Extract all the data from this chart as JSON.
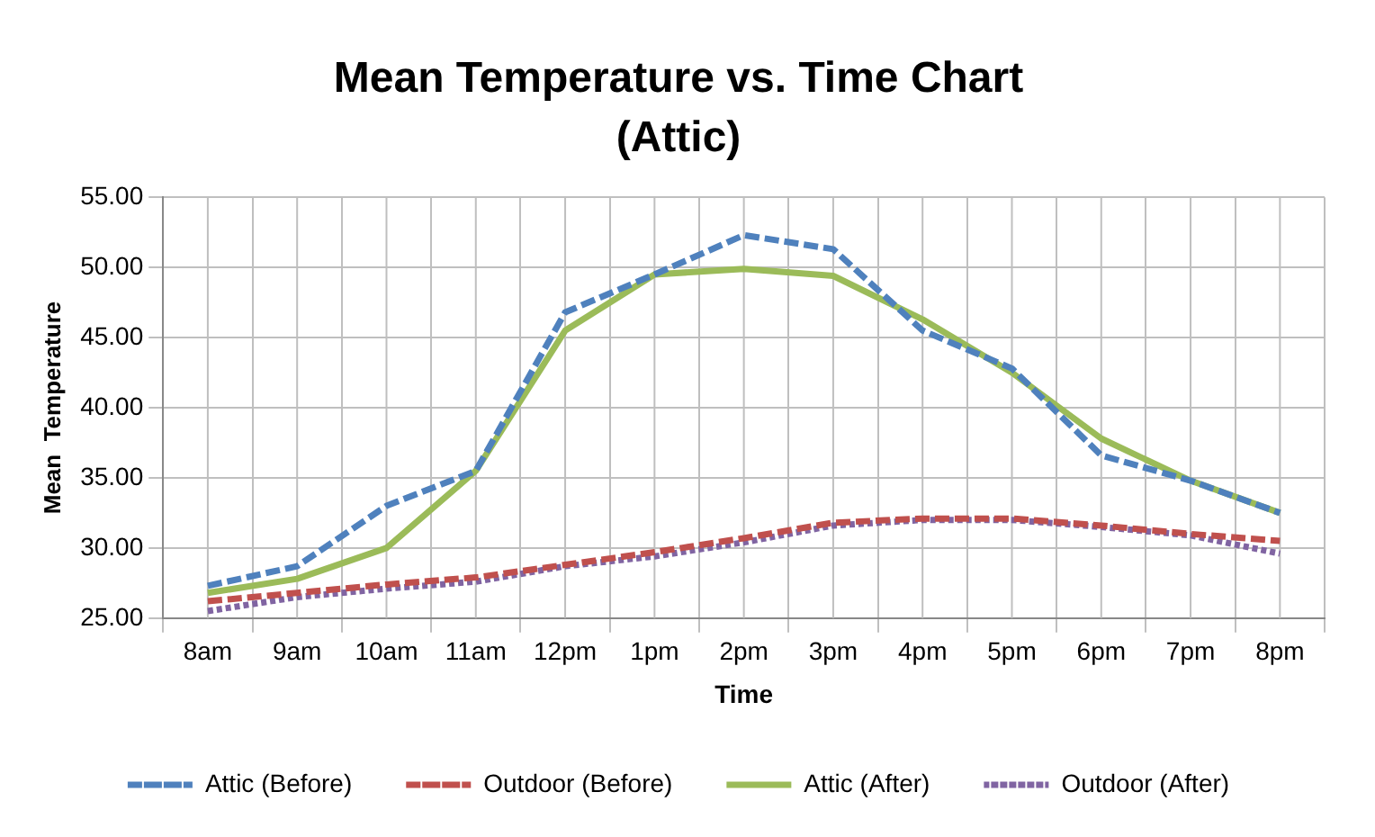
{
  "chart_data": {
    "type": "line",
    "title": "Mean Temperature vs. Time Chart",
    "subtitle": "(Attic)",
    "xlabel": "Time",
    "ylabel": "Mean  Temperature",
    "categories": [
      "8am",
      "9am",
      "10am",
      "11am",
      "12pm",
      "1pm",
      "2pm",
      "3pm",
      "4pm",
      "5pm",
      "6pm",
      "7pm",
      "8pm"
    ],
    "series": [
      {
        "name": "Attic (Before)",
        "color": "#4f81bd",
        "line_style": "dashed",
        "values": [
          27.3,
          28.7,
          33.0,
          35.5,
          46.8,
          49.5,
          52.3,
          51.3,
          45.5,
          42.8,
          36.6,
          34.8,
          32.5
        ]
      },
      {
        "name": "Outdoor (Before)",
        "color": "#c0504d",
        "line_style": "dashed",
        "values": [
          26.2,
          26.8,
          27.4,
          27.9,
          28.8,
          29.7,
          30.7,
          31.8,
          32.1,
          32.1,
          31.6,
          31.0,
          30.5
        ]
      },
      {
        "name": "Attic (After)",
        "color": "#9bbb59",
        "line_style": "solid",
        "values": [
          26.8,
          27.8,
          30.0,
          35.5,
          45.5,
          49.5,
          49.9,
          49.4,
          46.3,
          42.5,
          37.8,
          34.8,
          32.5
        ]
      },
      {
        "name": "Outdoor (After)",
        "color": "#8064a2",
        "line_style": "dotted",
        "values": [
          25.5,
          26.5,
          27.1,
          27.6,
          28.7,
          29.4,
          30.4,
          31.6,
          32.0,
          32.0,
          31.5,
          30.9,
          29.6
        ]
      }
    ],
    "ylim": [
      25,
      55
    ],
    "yticks": [
      {
        "value": 25,
        "label": "25.00"
      },
      {
        "value": 30,
        "label": "30.00"
      },
      {
        "value": 35,
        "label": "35.00"
      },
      {
        "value": 40,
        "label": "40.00"
      },
      {
        "value": 45,
        "label": "45.00"
      },
      {
        "value": 50,
        "label": "50.00"
      },
      {
        "value": 55,
        "label": "55.00"
      }
    ],
    "grid": true,
    "legend": "bottom",
    "marker": "none"
  }
}
